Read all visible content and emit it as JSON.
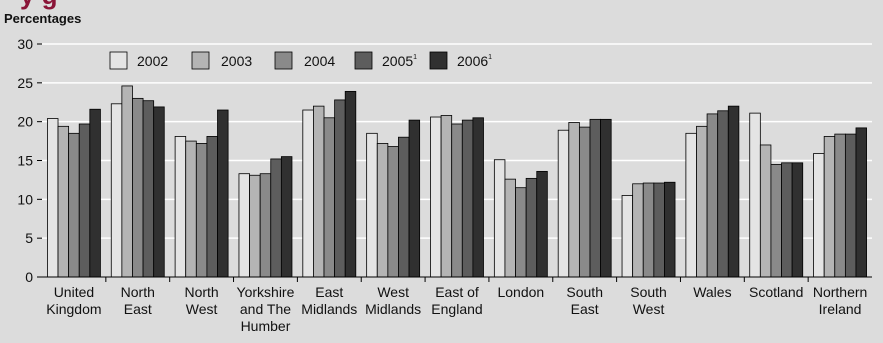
{
  "title_fragment": "y      g",
  "chart_data": {
    "type": "bar",
    "ylabel": "Percentages",
    "ylim": [
      0,
      30
    ],
    "yticks": [
      0,
      5,
      10,
      15,
      20,
      25,
      30
    ],
    "grid": true,
    "legend_position": "top-left",
    "categories": [
      [
        "United",
        "Kingdom"
      ],
      [
        "North",
        "East"
      ],
      [
        "North",
        "West"
      ],
      [
        "Yorkshire",
        "and The",
        "Humber"
      ],
      [
        "East",
        "Midlands"
      ],
      [
        "West",
        "Midlands"
      ],
      [
        "East of",
        "England"
      ],
      [
        "London"
      ],
      [
        "South",
        "East"
      ],
      [
        "South",
        "West"
      ],
      [
        "Wales"
      ],
      [
        "Scotland"
      ],
      [
        "Northern",
        "Ireland"
      ]
    ],
    "series": [
      {
        "name": "2002",
        "superscript": "",
        "color": "#e4e4e4",
        "values": [
          20.4,
          22.3,
          18.1,
          13.3,
          21.5,
          18.5,
          20.6,
          15.1,
          18.9,
          10.5,
          18.5,
          21.1,
          15.9
        ]
      },
      {
        "name": "2003",
        "superscript": "",
        "color": "#b4b4b4",
        "values": [
          19.4,
          24.6,
          17.5,
          13.1,
          22.0,
          17.2,
          20.8,
          12.6,
          19.9,
          12.0,
          19.4,
          17.0,
          18.1
        ]
      },
      {
        "name": "2004",
        "superscript": "",
        "color": "#8a8a8a",
        "values": [
          18.5,
          23.0,
          17.2,
          13.3,
          20.5,
          16.8,
          19.7,
          11.5,
          19.3,
          12.1,
          21.0,
          14.5,
          18.4
        ]
      },
      {
        "name": "2005",
        "superscript": "1",
        "color": "#5d5d5d",
        "values": [
          19.7,
          22.7,
          18.1,
          15.2,
          22.8,
          18.0,
          20.2,
          12.7,
          20.3,
          12.1,
          21.4,
          14.7,
          18.4
        ]
      },
      {
        "name": "2006",
        "superscript": "1",
        "color": "#303030",
        "values": [
          21.6,
          21.9,
          21.5,
          15.5,
          23.9,
          20.2,
          20.5,
          13.6,
          20.3,
          12.2,
          22.0,
          14.7,
          19.2
        ]
      }
    ]
  }
}
